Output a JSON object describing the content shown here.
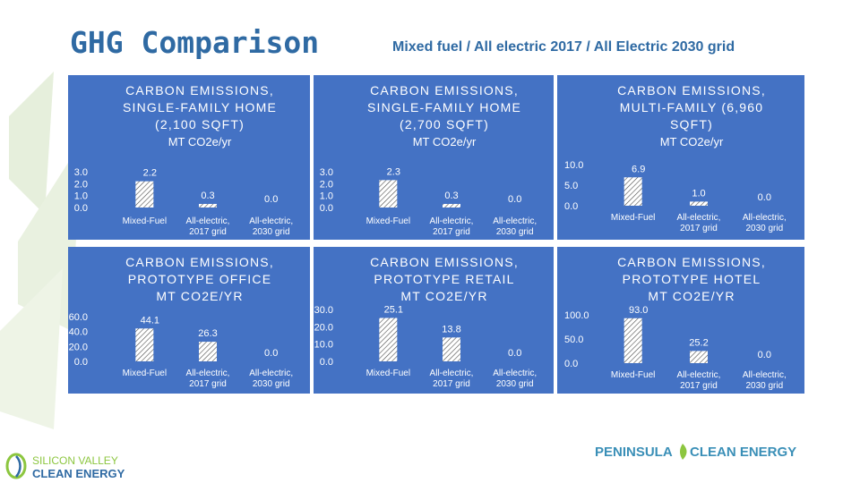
{
  "header": {
    "title": "GHG Comparison",
    "subtitle": "Mixed fuel / All electric 2017 / All Electric 2030 grid"
  },
  "logos": {
    "left_line1": "SILICON VALLEY",
    "left_line2": "CLEAN ENERGY",
    "right_part1": "PENINSULA",
    "right_part2": "CLEAN ENERGY"
  },
  "colors": {
    "panel": "#4472c4",
    "title": "#2f6aa3",
    "bar_hatch": "#ffffff"
  },
  "chart_data": [
    {
      "type": "bar",
      "title_lines": [
        "CARBON EMISSIONS,",
        "SINGLE-FAMILY HOME",
        "(2,100 SQFT)"
      ],
      "unit": "MT CO2e/yr",
      "categories": [
        [
          "Mixed-Fuel"
        ],
        [
          "All-electric,",
          "2017 grid"
        ],
        [
          "All-electric,",
          "2030 grid"
        ]
      ],
      "values": [
        2.2,
        0.3,
        0.0
      ],
      "labels": [
        "2.2",
        "0.3",
        "0.0"
      ],
      "ylim": [
        0,
        3
      ],
      "yticks": [
        "3.0",
        "2.0",
        "1.0",
        "0.0"
      ]
    },
    {
      "type": "bar",
      "title_lines": [
        "CARBON EMISSIONS,",
        "SINGLE-FAMILY HOME",
        "(2,700 SQFT)"
      ],
      "unit": "MT CO2e/yr",
      "categories": [
        [
          "Mixed-Fuel"
        ],
        [
          "All-electric,",
          "2017 grid"
        ],
        [
          "All-electric,",
          "2030 grid"
        ]
      ],
      "values": [
        2.3,
        0.3,
        0.0
      ],
      "labels": [
        "2.3",
        "0.3",
        "0.0"
      ],
      "ylim": [
        0,
        3
      ],
      "yticks": [
        "3.0",
        "2.0",
        "1.0",
        "0.0"
      ]
    },
    {
      "type": "bar",
      "title_lines": [
        "CARBON EMISSIONS,",
        "MULTI-FAMILY (6,960",
        "SQFT)"
      ],
      "unit": "MT CO2e/yr",
      "categories": [
        [
          "Mixed-Fuel"
        ],
        [
          "All-electric,",
          "2017 grid"
        ],
        [
          "All-electric,",
          "2030 grid"
        ]
      ],
      "values": [
        6.9,
        1.0,
        0.0
      ],
      "labels": [
        "6.9",
        "1.0",
        "0.0"
      ],
      "ylim": [
        0,
        10
      ],
      "yticks": [
        "10.0",
        "5.0",
        "0.0"
      ]
    },
    {
      "type": "bar",
      "title_lines": [
        "CARBON EMISSIONS,",
        "PROTOTYPE OFFICE",
        "MT CO2E/YR"
      ],
      "unit": "",
      "categories": [
        [
          "Mixed-Fuel"
        ],
        [
          "All-electric,",
          "2017 grid"
        ],
        [
          "All-electric,",
          "2030 grid"
        ]
      ],
      "values": [
        44.1,
        26.3,
        0.0
      ],
      "labels": [
        "44.1",
        "26.3",
        "0.0"
      ],
      "ylim": [
        0,
        60
      ],
      "yticks": [
        "60.0",
        "40.0",
        "20.0",
        "0.0"
      ]
    },
    {
      "type": "bar",
      "title_lines": [
        "CARBON EMISSIONS,",
        "PROTOTYPE RETAIL",
        "MT CO2E/YR"
      ],
      "unit": "",
      "categories": [
        [
          "Mixed-Fuel"
        ],
        [
          "All-electric,",
          "2017 grid"
        ],
        [
          "All-electric,",
          "2030 grid"
        ]
      ],
      "values": [
        25.1,
        13.8,
        0.0
      ],
      "labels": [
        "25.1",
        "13.8",
        "0.0"
      ],
      "ylim": [
        0,
        30
      ],
      "yticks": [
        "30.0",
        "20.0",
        "10.0",
        "0.0"
      ]
    },
    {
      "type": "bar",
      "title_lines": [
        "CARBON EMISSIONS,",
        "PROTOTYPE HOTEL",
        "MT CO2E/YR"
      ],
      "unit": "",
      "categories": [
        [
          "Mixed-Fuel"
        ],
        [
          "All-electric,",
          "2017 grid"
        ],
        [
          "All-electric,",
          "2030 grid"
        ]
      ],
      "values": [
        93.0,
        25.2,
        0.0
      ],
      "labels": [
        "93.0",
        "25.2",
        "0.0"
      ],
      "ylim": [
        0,
        100
      ],
      "yticks": [
        "100.0",
        "50.0",
        "0.0"
      ]
    }
  ]
}
